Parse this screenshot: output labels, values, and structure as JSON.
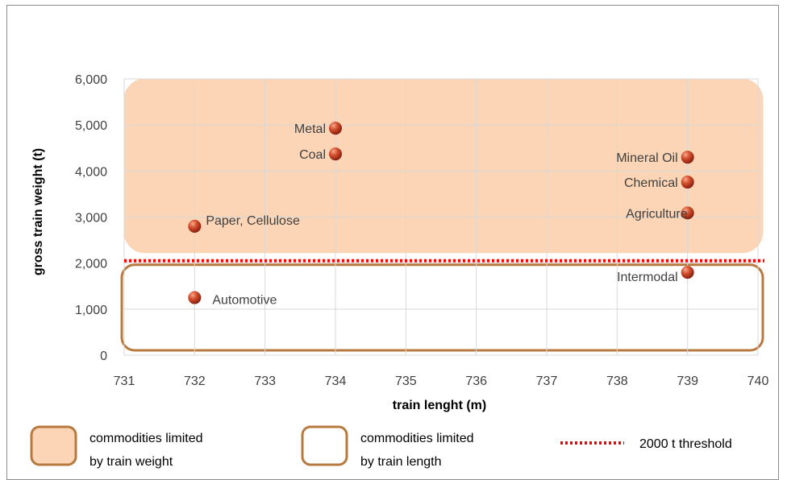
{
  "chart_data": {
    "type": "scatter",
    "xlabel": "train lenght (m)",
    "ylabel": "gross train weight (t)",
    "xlim": [
      731,
      740
    ],
    "ylim": [
      0,
      6000
    ],
    "x_ticks": [
      "731",
      "732",
      "733",
      "734",
      "735",
      "736",
      "737",
      "738",
      "739",
      "740"
    ],
    "y_ticks": [
      "0",
      "1,000",
      "2,000",
      "3,000",
      "4,000",
      "5,000",
      "6,000"
    ],
    "grid": true,
    "points": [
      {
        "label": "Metal",
        "x": 734,
        "y": 4930
      },
      {
        "label": "Coal",
        "x": 734,
        "y": 4370
      },
      {
        "label": "Mineral Oil",
        "x": 739,
        "y": 4300
      },
      {
        "label": "Chemical",
        "x": 739,
        "y": 3760
      },
      {
        "label": "Agriculture",
        "x": 739,
        "y": 3090
      },
      {
        "label": "Paper, Cellulose",
        "x": 732,
        "y": 2800
      },
      {
        "label": "Intermodal",
        "x": 739,
        "y": 1800
      },
      {
        "label": "Automotive",
        "x": 732,
        "y": 1250
      }
    ],
    "threshold": {
      "y": 2050,
      "label": "2000 t threshold",
      "color": "#ff0000"
    },
    "regions": [
      {
        "label": "commodities limited by train weight",
        "y_range": [
          2050,
          6000
        ],
        "fill": "#fbd5b5",
        "stroke": "#fbd5b5"
      },
      {
        "label": "commodities limited by train length",
        "y_range": [
          0,
          2050
        ],
        "fill": "#ffffff",
        "stroke": "#b7793e"
      }
    ],
    "marker_color": "#c0392b"
  },
  "legend": {
    "weight_line1": "commodities limited",
    "weight_line2": "by train weight",
    "length_line1": "commodities limited",
    "length_line2": "by train length",
    "threshold": "2000 t threshold"
  }
}
